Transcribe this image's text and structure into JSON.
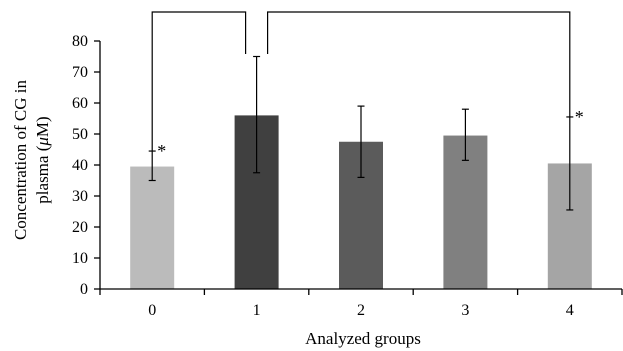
{
  "chart_data": {
    "type": "bar",
    "title": "",
    "xlabel": "Analyzed groups",
    "ylabel_line1": "Concentration of CG in",
    "ylabel_line2_prefix": "plasma (",
    "ylabel_mu": "μ",
    "ylabel_line2_suffix": "M)",
    "categories": [
      "0",
      "1",
      "2",
      "3",
      "4"
    ],
    "values": [
      39.5,
      56,
      47.5,
      49.5,
      40.5
    ],
    "error_low": [
      35,
      37.5,
      36,
      41.5,
      25.5
    ],
    "error_high": [
      44.5,
      75,
      59,
      58,
      55.5
    ],
    "colors": [
      "#bbbbbb",
      "#404040",
      "#5b5b5b",
      "#808080",
      "#a5a5a5"
    ],
    "ylim": [
      0,
      80
    ],
    "yticks": [
      "0",
      "10",
      "20",
      "30",
      "40",
      "50",
      "60",
      "70",
      "80"
    ],
    "significance": [
      {
        "from": 1,
        "to": 0,
        "marker": "*"
      },
      {
        "from": 1,
        "to": 4,
        "marker": "*"
      }
    ],
    "grid": false,
    "legend": "none"
  }
}
